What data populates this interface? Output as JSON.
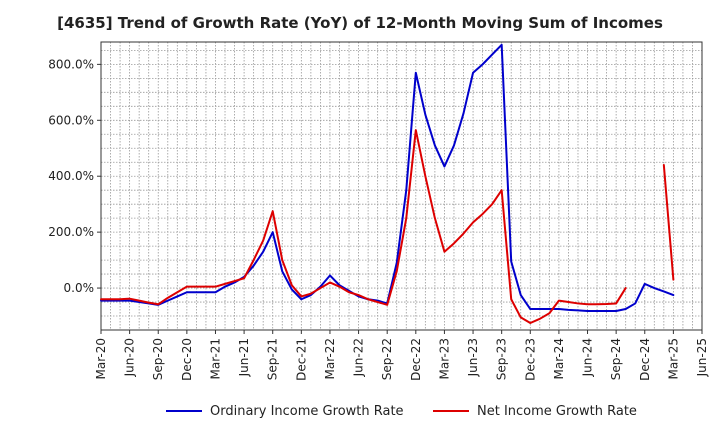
{
  "chart_data": {
    "type": "line",
    "title": "[4635]  Trend of Growth Rate (YoY) of 12-Month Moving Sum of Incomes",
    "xlabel": "",
    "ylabel": "",
    "x_tick_labels": [
      "Mar-20",
      "Jun-20",
      "Sep-20",
      "Dec-20",
      "Mar-21",
      "Jun-21",
      "Sep-21",
      "Dec-21",
      "Mar-22",
      "Jun-22",
      "Sep-22",
      "Dec-22",
      "Mar-23",
      "Jun-23",
      "Sep-23",
      "Dec-23",
      "Mar-24",
      "Jun-24",
      "Sep-24",
      "Dec-24",
      "Mar-25",
      "Jun-25"
    ],
    "y_ticks": [
      0,
      200,
      400,
      600,
      800
    ],
    "y_tick_labels": [
      "0.0%",
      "200.0%",
      "400.0%",
      "600.0%",
      "800.0%"
    ],
    "ylim": [
      -150,
      880
    ],
    "grid": true,
    "legend_position": "bottom",
    "colors": {
      "ordinary": "#0000cc",
      "net": "#dd0000"
    },
    "series": [
      {
        "name": "Ordinary Income Growth Rate",
        "color": "#0000cc",
        "points": [
          [
            "Mar-20",
            -45
          ],
          [
            "Apr-20",
            -45
          ],
          [
            "May-20",
            -45
          ],
          [
            "Jun-20",
            -45
          ],
          [
            "Jul-20",
            -50
          ],
          [
            "Aug-20",
            -55
          ],
          [
            "Sep-20",
            -60
          ],
          [
            "Oct-20",
            -45
          ],
          [
            "Nov-20",
            -30
          ],
          [
            "Dec-20",
            -15
          ],
          [
            "Jan-21",
            -15
          ],
          [
            "Feb-21",
            -15
          ],
          [
            "Mar-21",
            -15
          ],
          [
            "Apr-21",
            5
          ],
          [
            "May-21",
            20
          ],
          [
            "Jun-21",
            40
          ],
          [
            "Jul-21",
            80
          ],
          [
            "Aug-21",
            130
          ],
          [
            "Sep-21",
            200
          ],
          [
            "Oct-21",
            60
          ],
          [
            "Nov-21",
            -5
          ],
          [
            "Dec-21",
            -40
          ],
          [
            "Jan-22",
            -25
          ],
          [
            "Feb-22",
            5
          ],
          [
            "Mar-22",
            45
          ],
          [
            "Apr-22",
            10
          ],
          [
            "May-22",
            -10
          ],
          [
            "Jun-22",
            -30
          ],
          [
            "Jul-22",
            -40
          ],
          [
            "Aug-22",
            -45
          ],
          [
            "Sep-22",
            -55
          ],
          [
            "Oct-22",
            90
          ],
          [
            "Nov-22",
            350
          ],
          [
            "Dec-22",
            770
          ],
          [
            "Jan-23",
            620
          ],
          [
            "Feb-23",
            510
          ],
          [
            "Mar-23",
            435
          ],
          [
            "Apr-23",
            510
          ],
          [
            "May-23",
            625
          ],
          [
            "Jun-23",
            770
          ],
          [
            "Jul-23",
            800
          ],
          [
            "Aug-23",
            835
          ],
          [
            "Sep-23",
            870
          ],
          [
            "Oct-23",
            95
          ],
          [
            "Nov-23",
            -25
          ],
          [
            "Dec-23",
            -75
          ],
          [
            "Jan-24",
            -75
          ],
          [
            "Feb-24",
            -75
          ],
          [
            "Mar-24",
            -75
          ],
          [
            "Apr-24",
            -78
          ],
          [
            "May-24",
            -80
          ],
          [
            "Jun-24",
            -82
          ],
          [
            "Jul-24",
            -82
          ],
          [
            "Aug-24",
            -82
          ],
          [
            "Sep-24",
            -82
          ],
          [
            "Oct-24",
            -75
          ],
          [
            "Nov-24",
            -55
          ],
          [
            "Dec-24",
            15
          ],
          [
            "Jan-25",
            0
          ],
          [
            "Feb-25",
            -12
          ],
          [
            "Mar-25",
            -25
          ]
        ]
      },
      {
        "name": "Net Income Growth Rate",
        "color": "#dd0000",
        "points": [
          [
            "Mar-20",
            -40
          ],
          [
            "Apr-20",
            -40
          ],
          [
            "May-20",
            -40
          ],
          [
            "Jun-20",
            -38
          ],
          [
            "Jul-20",
            -45
          ],
          [
            "Aug-20",
            -52
          ],
          [
            "Sep-20",
            -58
          ],
          [
            "Oct-20",
            -35
          ],
          [
            "Nov-20",
            -15
          ],
          [
            "Dec-20",
            5
          ],
          [
            "Jan-21",
            5
          ],
          [
            "Feb-21",
            5
          ],
          [
            "Mar-21",
            5
          ],
          [
            "Apr-21",
            15
          ],
          [
            "May-21",
            25
          ],
          [
            "Jun-21",
            35
          ],
          [
            "Jul-21",
            100
          ],
          [
            "Aug-21",
            170
          ],
          [
            "Sep-21",
            275
          ],
          [
            "Oct-21",
            100
          ],
          [
            "Nov-21",
            10
          ],
          [
            "Dec-21",
            -30
          ],
          [
            "Jan-22",
            -20
          ],
          [
            "Feb-22",
            0
          ],
          [
            "Mar-22",
            20
          ],
          [
            "Apr-22",
            5
          ],
          [
            "May-22",
            -15
          ],
          [
            "Jun-22",
            -25
          ],
          [
            "Jul-22",
            -40
          ],
          [
            "Aug-22",
            -50
          ],
          [
            "Sep-22",
            -60
          ],
          [
            "Oct-22",
            60
          ],
          [
            "Nov-22",
            250
          ],
          [
            "Dec-22",
            565
          ],
          [
            "Jan-23",
            400
          ],
          [
            "Feb-23",
            250
          ],
          [
            "Mar-23",
            130
          ],
          [
            "Apr-23",
            160
          ],
          [
            "May-23",
            195
          ],
          [
            "Jun-23",
            235
          ],
          [
            "Jul-23",
            265
          ],
          [
            "Aug-23",
            300
          ],
          [
            "Sep-23",
            350
          ],
          [
            "Oct-23",
            -40
          ],
          [
            "Nov-23",
            -105
          ],
          [
            "Dec-23",
            -125
          ],
          [
            "Jan-24",
            -110
          ],
          [
            "Feb-24",
            -90
          ],
          [
            "Mar-24",
            -45
          ],
          [
            "Apr-24",
            -50
          ],
          [
            "May-24",
            -55
          ],
          [
            "Jun-24",
            -58
          ],
          [
            "Jul-24",
            -58
          ],
          [
            "Aug-24",
            -57
          ],
          [
            "Sep-24",
            -55
          ],
          [
            "Oct-24",
            0
          ]
        ]
      },
      {
        "name": "Net Income Growth Rate",
        "color": "#dd0000",
        "continuation": true,
        "points": [
          [
            "Feb-25",
            440
          ],
          [
            "Mar-25",
            30
          ]
        ]
      }
    ]
  }
}
